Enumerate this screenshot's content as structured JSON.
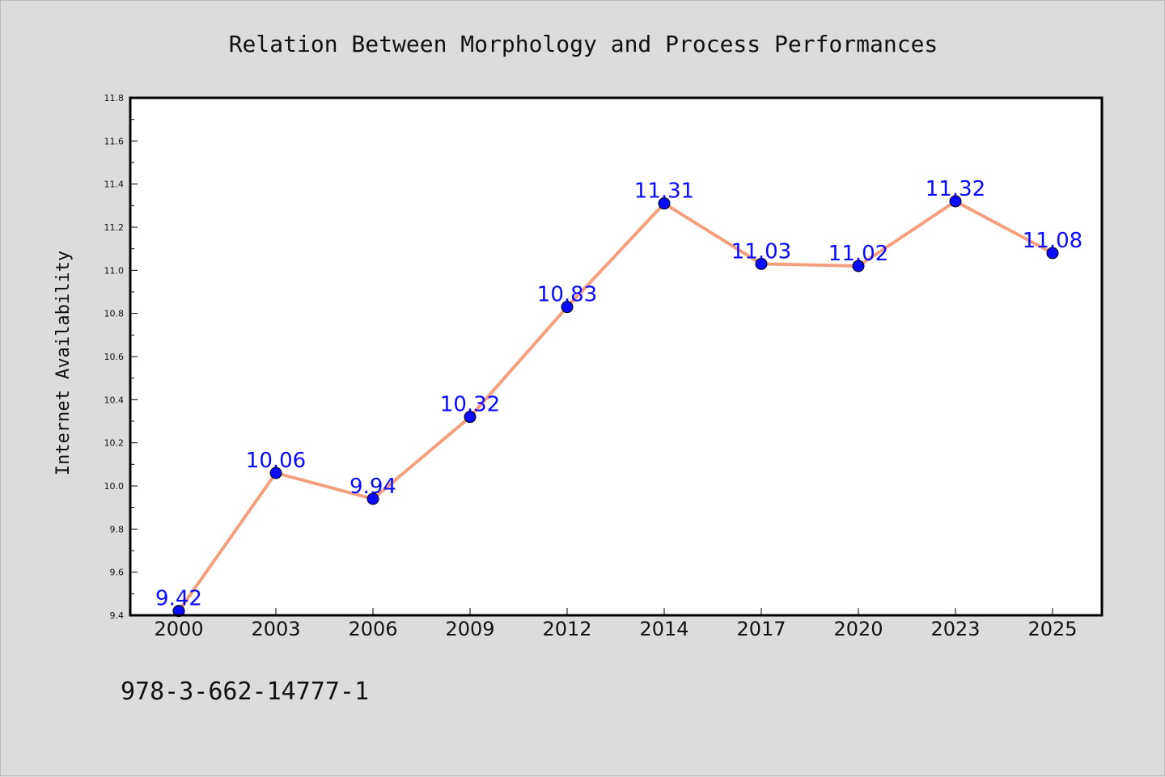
{
  "chart_data": {
    "type": "line",
    "title": "Relation Between Morphology and Process Performances",
    "ylabel": "Internet Availability",
    "xlabel": "",
    "categories": [
      "2000",
      "2003",
      "2006",
      "2009",
      "2012",
      "2014",
      "2017",
      "2020",
      "2023",
      "2025"
    ],
    "series": [
      {
        "values": [
          9.42,
          10.06,
          9.94,
          10.32,
          10.83,
          11.31,
          11.03,
          11.02,
          11.32,
          11.08
        ],
        "labels": [
          "9.42",
          "10.06",
          "9.94",
          "10.32",
          "10.83",
          "11.31",
          "11.03",
          "11.02",
          "11.32",
          "11.08"
        ],
        "line_color": "#f4a07e",
        "marker_color": "#0a0aff",
        "label_color": "#0a0aff"
      }
    ],
    "ylim": [
      9.4,
      11.8
    ],
    "yticks": [
      "9.4",
      "9.6",
      "9.8",
      "10.0",
      "10.2",
      "10.4",
      "10.6",
      "10.8",
      "11.0",
      "11.2",
      "11.4",
      "11.6",
      "11.8"
    ],
    "grid": false,
    "legend": "none"
  },
  "footer": {
    "text": "978-3-662-14777-1"
  }
}
